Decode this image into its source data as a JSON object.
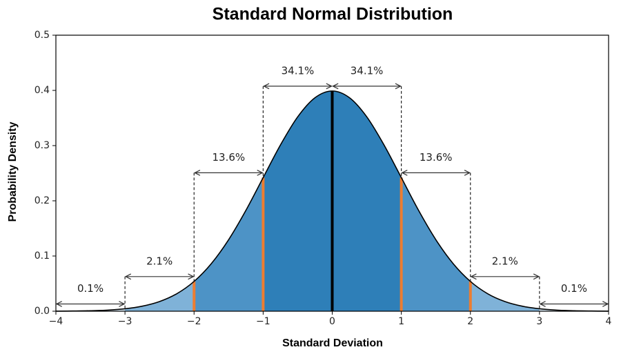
{
  "chart_data": {
    "type": "line",
    "title": "Standard Normal Distribution",
    "xlabel": "Standard Deviation",
    "ylabel": "Probability Density",
    "x": [
      -4,
      -3.75,
      -3.5,
      -3.25,
      -3,
      -2.75,
      -2.5,
      -2.25,
      -2,
      -1.75,
      -1.5,
      -1.25,
      -1,
      -0.75,
      -0.5,
      -0.25,
      0,
      0.25,
      0.5,
      0.75,
      1,
      1.25,
      1.5,
      1.75,
      2,
      2.25,
      2.5,
      2.75,
      3,
      3.25,
      3.5,
      3.75,
      4
    ],
    "values": [
      0.0001,
      0.0004,
      0.0009,
      0.002,
      0.0044,
      0.0091,
      0.0175,
      0.0317,
      0.054,
      0.0863,
      0.1295,
      0.1826,
      0.242,
      0.3011,
      0.3521,
      0.3867,
      0.3989,
      0.3867,
      0.3521,
      0.3011,
      0.242,
      0.1826,
      0.1295,
      0.0863,
      0.054,
      0.0317,
      0.0175,
      0.0091,
      0.0044,
      0.002,
      0.0009,
      0.0004,
      0.0001
    ],
    "color": "#000000",
    "bands": [
      {
        "from": -4,
        "to": -3,
        "color": "#d6e6f2"
      },
      {
        "from": -3,
        "to": -2,
        "color": "#7fb2d8"
      },
      {
        "from": -2,
        "to": -1,
        "color": "#4d93c6"
      },
      {
        "from": -1,
        "to": 1,
        "color": "#2e7fb8"
      },
      {
        "from": 1,
        "to": 2,
        "color": "#4d93c6"
      },
      {
        "from": 2,
        "to": 3,
        "color": "#7fb2d8"
      },
      {
        "from": 3,
        "to": 4,
        "color": "#d6e6f2"
      }
    ],
    "sigma_lines": [
      {
        "x": -2,
        "color": "#ed7d31"
      },
      {
        "x": -1,
        "color": "#ed7d31"
      },
      {
        "x": 0,
        "color": "#000000"
      },
      {
        "x": 1,
        "color": "#ed7d31"
      },
      {
        "x": 2,
        "color": "#ed7d31"
      }
    ],
    "annotations": [
      {
        "label": "0.1%",
        "from": -4,
        "to": -3
      },
      {
        "label": "2.1%",
        "from": -3,
        "to": -2
      },
      {
        "label": "13.6%",
        "from": -2,
        "to": -1
      },
      {
        "label": "34.1%",
        "from": -1,
        "to": 0
      },
      {
        "label": "34.1%",
        "from": 0,
        "to": 1
      },
      {
        "label": "13.6%",
        "from": 1,
        "to": 2
      },
      {
        "label": "2.1%",
        "from": 2,
        "to": 3
      },
      {
        "label": "0.1%",
        "from": 3,
        "to": 4
      }
    ],
    "xlim": [
      -4,
      4
    ],
    "ylim": [
      0,
      0.5
    ],
    "xticks": [
      {
        "value": -4,
        "label": "−4"
      },
      {
        "value": -3,
        "label": "−3"
      },
      {
        "value": -2,
        "label": "−2"
      },
      {
        "value": -1,
        "label": "−1"
      },
      0,
      1,
      2,
      3,
      4
    ],
    "yticks": [
      {
        "value": 0,
        "label": "0.0"
      },
      0.1,
      0.2,
      0.3,
      0.4,
      0.5
    ]
  }
}
